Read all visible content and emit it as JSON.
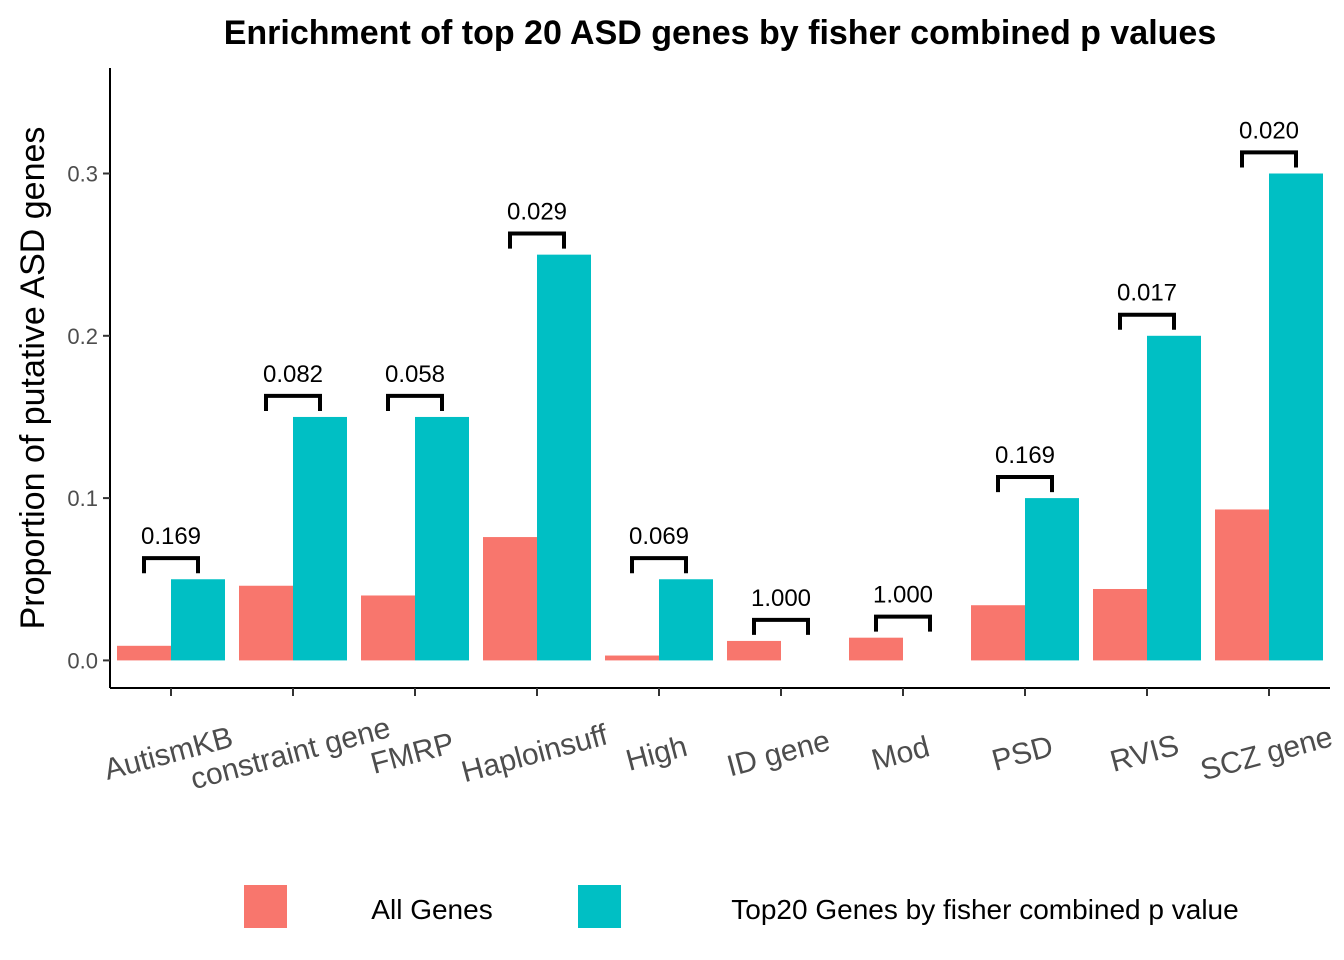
{
  "chart_data": {
    "type": "bar",
    "title": "Enrichment of top 20 ASD genes by fisher combined p values",
    "xlabel": "",
    "ylabel": "Proportion of putative ASD genes",
    "ylim": [
      -0.017,
      0.365
    ],
    "yticks": [
      0.0,
      0.1,
      0.2,
      0.3
    ],
    "ytick_labels": [
      "0.0",
      "0.1",
      "0.2",
      "0.3"
    ],
    "grid": false,
    "legend_position": "bottom",
    "categories": [
      "AutismKB",
      "constraint gene",
      "FMRP",
      "Haploinsuff",
      "High",
      "ID gene",
      "Mod",
      "PSD",
      "RVIS",
      "SCZ gene"
    ],
    "series": [
      {
        "name": "All Genes",
        "color": "#F8766D",
        "values": [
          0.009,
          0.046,
          0.04,
          0.076,
          0.003,
          0.012,
          0.014,
          0.034,
          0.044,
          0.093
        ]
      },
      {
        "name": "Top20 Genes by fisher combined p value",
        "color": "#00BFC4",
        "values": [
          0.05,
          0.15,
          0.15,
          0.25,
          0.05,
          0.0,
          0.0,
          0.1,
          0.2,
          0.3
        ]
      }
    ],
    "annotations": [
      "0.169",
      "0.082",
      "0.058",
      "0.029",
      "0.069",
      "1.000",
      "1.000",
      "0.169",
      "0.017",
      "0.020"
    ]
  }
}
